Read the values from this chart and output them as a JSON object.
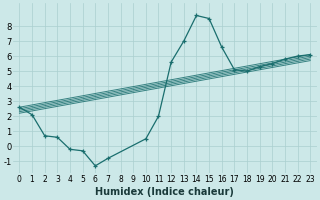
{
  "xlabel": "Humidex (Indice chaleur)",
  "background_color": "#cce8e8",
  "grid_color": "#aacfcf",
  "line_color": "#1a6e6e",
  "xlim": [
    -0.5,
    23.5
  ],
  "ylim": [
    -1.8,
    9.5
  ],
  "xticks": [
    0,
    1,
    2,
    3,
    4,
    5,
    6,
    7,
    8,
    9,
    10,
    11,
    12,
    13,
    14,
    15,
    16,
    17,
    18,
    19,
    20,
    21,
    22,
    23
  ],
  "yticks": [
    -1,
    0,
    1,
    2,
    3,
    4,
    5,
    6,
    7,
    8
  ],
  "main_x": [
    0,
    1,
    2,
    3,
    4,
    5,
    6,
    7,
    10,
    11,
    12,
    13,
    14,
    15,
    16,
    17,
    18,
    19,
    20,
    21,
    22,
    23
  ],
  "main_y": [
    2.6,
    2.1,
    0.7,
    0.6,
    -0.2,
    -0.3,
    -1.3,
    -0.8,
    0.5,
    2.0,
    5.6,
    7.0,
    8.7,
    8.5,
    6.6,
    5.1,
    5.0,
    5.3,
    5.5,
    5.8,
    6.0,
    6.1
  ],
  "trend_lines": [
    {
      "x": [
        0,
        23
      ],
      "y": [
        2.6,
        6.1
      ]
    },
    {
      "x": [
        0,
        23
      ],
      "y": [
        2.5,
        6.0
      ]
    },
    {
      "x": [
        0,
        23
      ],
      "y": [
        2.4,
        5.9
      ]
    },
    {
      "x": [
        0,
        23
      ],
      "y": [
        2.3,
        5.8
      ]
    },
    {
      "x": [
        0,
        23
      ],
      "y": [
        2.2,
        5.7
      ]
    }
  ],
  "xlabel_fontsize": 7,
  "tick_fontsize": 5.5
}
